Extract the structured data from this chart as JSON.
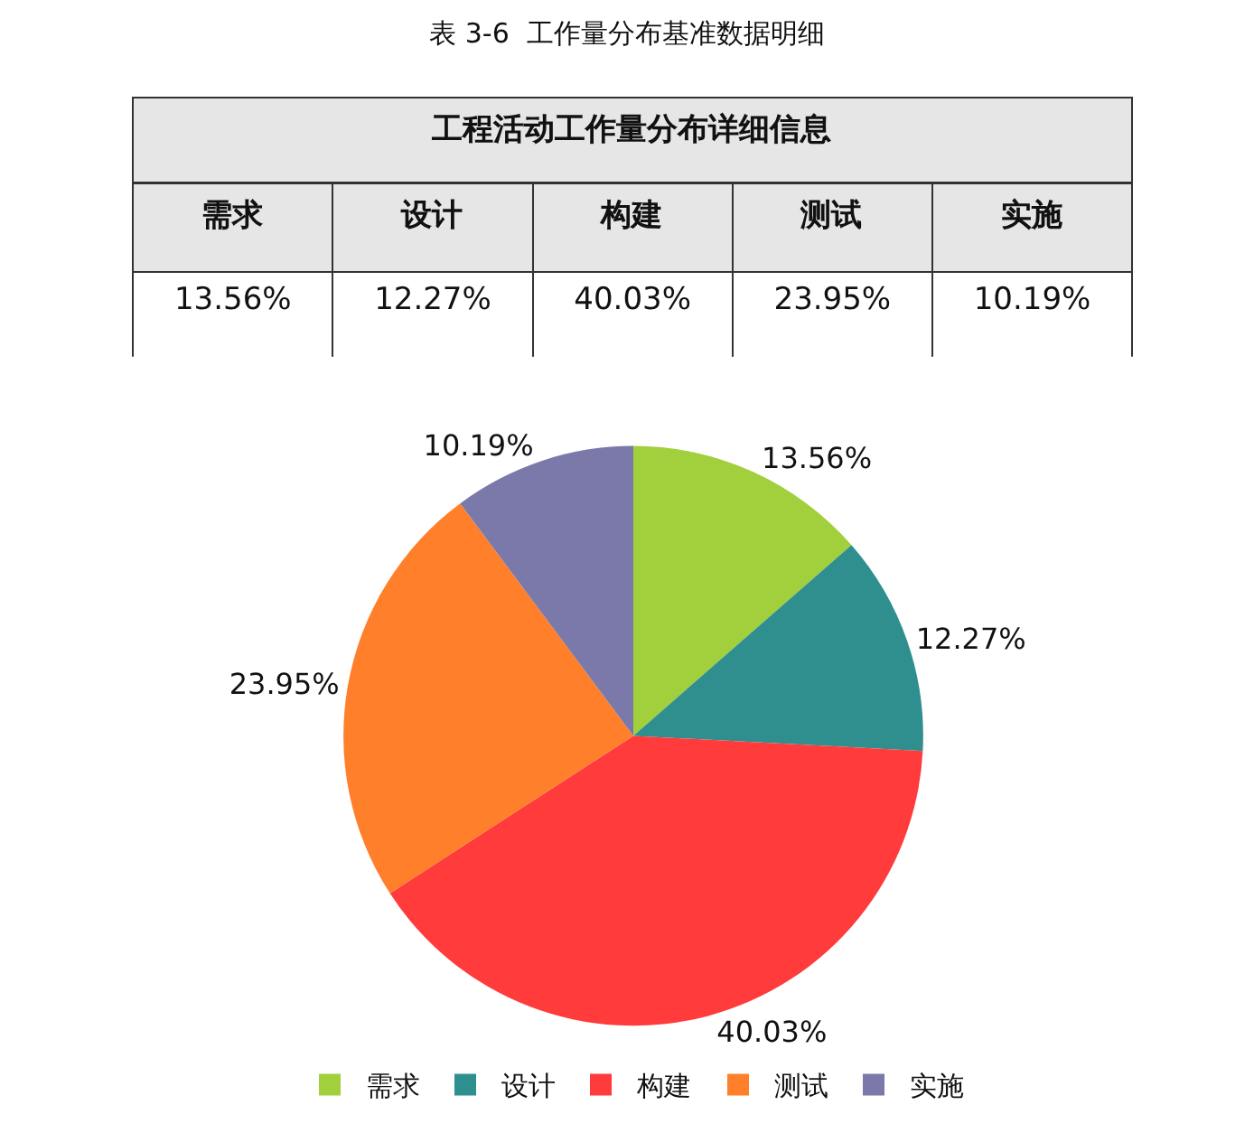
{
  "chart_data": {
    "type": "pie",
    "title": "表 3-6  工作量分布基准数据明细",
    "subtitle": "工程活动工作量分布详细信息",
    "categories": [
      "需求",
      "设计",
      "构建",
      "测试",
      "实施"
    ],
    "values": [
      13.56,
      12.27,
      40.03,
      23.95,
      10.19
    ],
    "value_labels": [
      "13.56%",
      "12.27%",
      "40.03%",
      "23.95%",
      "10.19%"
    ],
    "colors": [
      "#a2cf3c",
      "#2f8f8f",
      "#ff3b3b",
      "#ff7f2a",
      "#7b79aa"
    ],
    "legend": "bottom"
  }
}
